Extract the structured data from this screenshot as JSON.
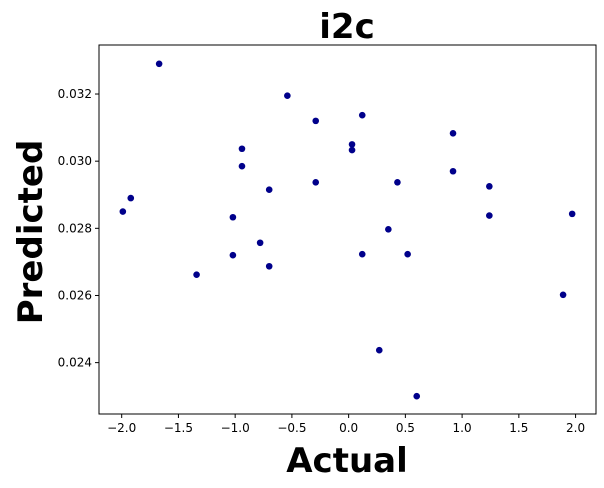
{
  "chart_data": {
    "type": "scatter",
    "title": "i2c",
    "xlabel": "Actual",
    "ylabel": "Predicted",
    "xlim": [
      -2.2,
      2.18
    ],
    "ylim": [
      0.02247,
      0.03346
    ],
    "xticks": [
      -2.0,
      -1.5,
      -1.0,
      -0.5,
      0.0,
      0.5,
      1.0,
      1.5,
      2.0
    ],
    "xtick_labels": [
      "−2.0",
      "−1.5",
      "−1.0",
      "−0.5",
      "0.0",
      "0.5",
      "1.0",
      "1.5",
      "2.0"
    ],
    "yticks": [
      0.024,
      0.026,
      0.028,
      0.03,
      0.032
    ],
    "ytick_labels": [
      "0.024",
      "0.026",
      "0.028",
      "0.030",
      "0.032"
    ],
    "grid": false,
    "marker_color": "#00008b",
    "points": [
      {
        "x": -1.67,
        "y": 0.0329
      },
      {
        "x": -0.54,
        "y": 0.03195
      },
      {
        "x": 0.12,
        "y": 0.03137
      },
      {
        "x": -0.29,
        "y": 0.0312
      },
      {
        "x": 0.92,
        "y": 0.03083
      },
      {
        "x": 0.03,
        "y": 0.0305
      },
      {
        "x": -0.94,
        "y": 0.03037
      },
      {
        "x": 0.03,
        "y": 0.03033
      },
      {
        "x": -0.94,
        "y": 0.02985
      },
      {
        "x": 0.92,
        "y": 0.0297
      },
      {
        "x": 0.43,
        "y": 0.02937
      },
      {
        "x": -0.29,
        "y": 0.02937
      },
      {
        "x": 1.24,
        "y": 0.02925
      },
      {
        "x": -0.7,
        "y": 0.02915
      },
      {
        "x": -1.92,
        "y": 0.0289
      },
      {
        "x": -1.99,
        "y": 0.0285
      },
      {
        "x": 1.97,
        "y": 0.02843
      },
      {
        "x": 1.24,
        "y": 0.02838
      },
      {
        "x": -1.02,
        "y": 0.02833
      },
      {
        "x": 0.35,
        "y": 0.02797
      },
      {
        "x": -0.78,
        "y": 0.02757
      },
      {
        "x": -1.02,
        "y": 0.0272
      },
      {
        "x": 0.12,
        "y": 0.02723
      },
      {
        "x": 0.52,
        "y": 0.02723
      },
      {
        "x": -0.7,
        "y": 0.02687
      },
      {
        "x": -1.34,
        "y": 0.02662
      },
      {
        "x": 1.89,
        "y": 0.02602
      },
      {
        "x": 0.27,
        "y": 0.02437
      },
      {
        "x": 0.6,
        "y": 0.023
      }
    ]
  }
}
